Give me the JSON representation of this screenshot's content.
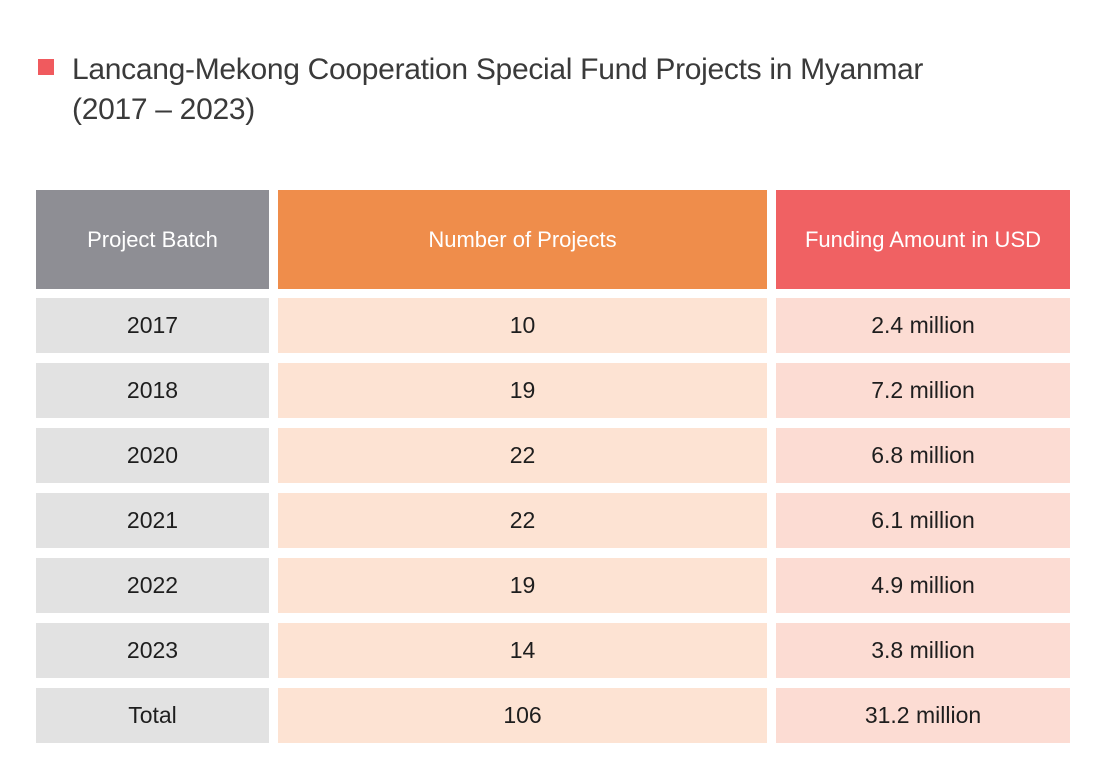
{
  "title": {
    "line1": "Lancang-Mekong Cooperation Special Fund Projects in Myanmar",
    "line2": "(2017 – 2023)",
    "marker_color": "#f05a5e"
  },
  "chart_data": {
    "type": "table",
    "title": "Lancang-Mekong Cooperation Special Fund Projects in Myanmar (2017 – 2023)",
    "columns": [
      "Project Batch",
      "Number of Projects",
      "Funding Amount in USD"
    ],
    "header_colors": [
      "#8e8e94",
      "#ef8d4b",
      "#f06163"
    ],
    "rows": [
      [
        "2017",
        "10",
        "2.4 million"
      ],
      [
        "2018",
        "19",
        "7.2 million"
      ],
      [
        "2020",
        "22",
        "6.8 million"
      ],
      [
        "2021",
        "22",
        "6.1 million"
      ],
      [
        "2022",
        "19",
        "4.9 million"
      ],
      [
        "2023",
        "14",
        "3.8 million"
      ],
      [
        "Total",
        "106",
        "31.2 million"
      ]
    ]
  }
}
